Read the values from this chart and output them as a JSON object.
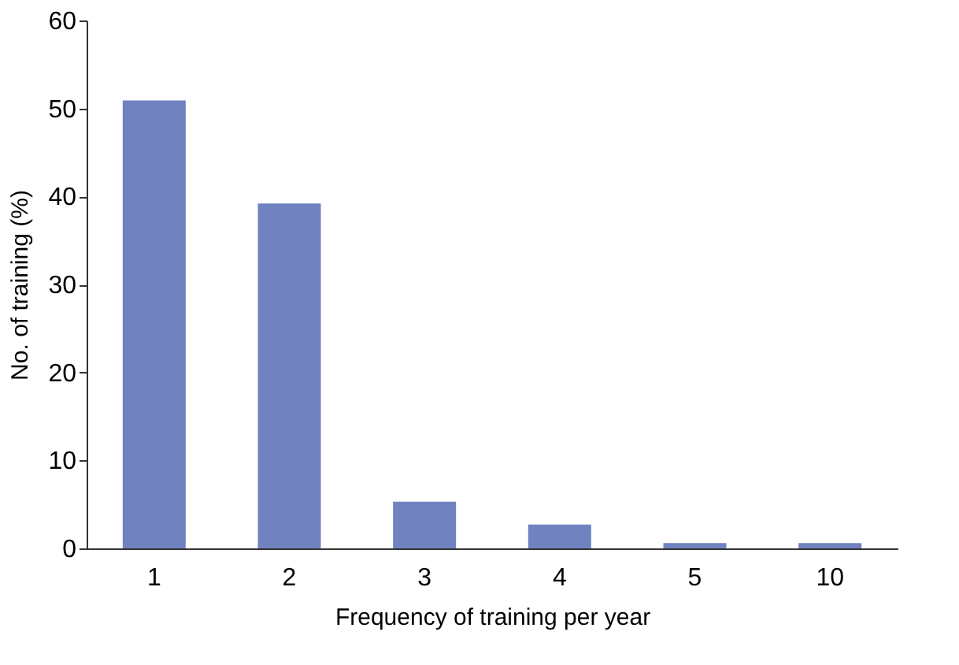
{
  "chart_data": {
    "type": "bar",
    "xlabel": "Frequency of training per year",
    "ylabel": "No. of training (%)",
    "categories": [
      "1",
      "2",
      "3",
      "4",
      "5",
      "10"
    ],
    "values": [
      50.9,
      39.2,
      5.3,
      2.7,
      0.6,
      0.6
    ],
    "color": "#7082c0",
    "ylim": [
      0,
      60
    ],
    "yticks": [
      0,
      10,
      20,
      30,
      40,
      50,
      60
    ],
    "grid": false
  }
}
